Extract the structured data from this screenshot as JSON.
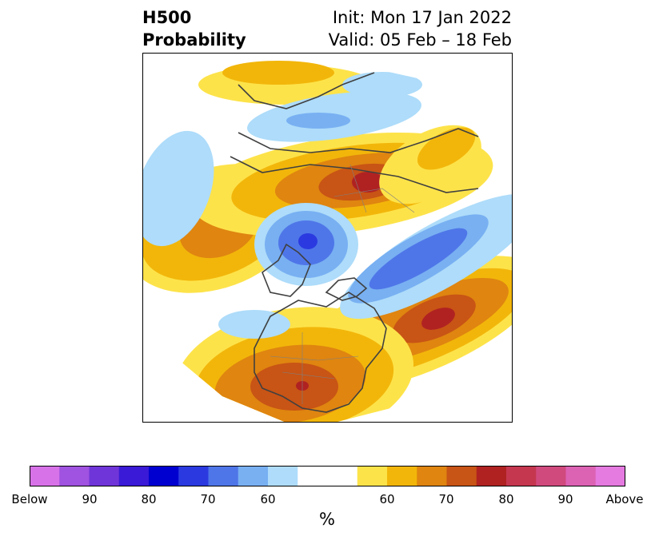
{
  "title": {
    "left_line1": "H500",
    "left_line2": "Probability",
    "right_line1": "Init: Mon 17 Jan 2022",
    "right_line2": "Valid: 05 Feb – 18 Feb"
  },
  "map": {
    "projection": "north polar stereographic",
    "features": [
      {
        "kind": "above",
        "level": "70-80",
        "region": "central Russia / Siberia"
      },
      {
        "kind": "above",
        "level": "60-70",
        "region": "northeast Pacific / Gulf of Alaska"
      },
      {
        "kind": "above",
        "level": "70-80",
        "region": "central Atlantic"
      },
      {
        "kind": "above",
        "level": "70-80",
        "region": "central and southern United States"
      },
      {
        "kind": "below",
        "level": "70-80",
        "region": "Alaska / Bering Strait"
      },
      {
        "kind": "below",
        "level": "70",
        "region": "Greenland / Iceland"
      },
      {
        "kind": "below",
        "level": "60",
        "region": "Europe"
      }
    ]
  },
  "colorbar": {
    "unit": "%",
    "colors": [
      "#d872e8",
      "#a052e0",
      "#7035d8",
      "#3a1ad6",
      "#0000d0",
      "#2a3ae0",
      "#4f76e8",
      "#78b0f2",
      "#aedcfa",
      "#ffffff",
      "#ffffff",
      "#fde34a",
      "#f2b60a",
      "#df8510",
      "#c85415",
      "#b02222",
      "#c5374f",
      "#d04a7e",
      "#dc62b4",
      "#e57ae0"
    ],
    "tick_labels": [
      "Below",
      "90",
      "80",
      "70",
      "60",
      "60",
      "70",
      "80",
      "90",
      "Above"
    ]
  }
}
